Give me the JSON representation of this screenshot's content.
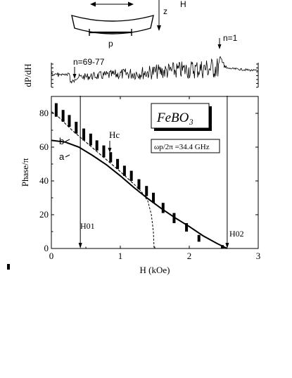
{
  "colors": {
    "ink": "#000000",
    "background": "#ffffff",
    "ticks": "#000000"
  },
  "schematic": {
    "field_label": "H",
    "axis_label": "z",
    "pump_label": "p"
  },
  "top_trace": {
    "ylabel": "dP/dH",
    "annotations": {
      "left": "n=69-77",
      "right": "n=1"
    }
  },
  "chart_data": {
    "type": "line",
    "xlabel": "H (kOe)",
    "ylabel": "Phase/π",
    "xlim": [
      0,
      3
    ],
    "ylim": [
      0,
      90
    ],
    "xticks": [
      "0",
      "1",
      "2",
      "3"
    ],
    "yticks": [
      "0",
      "20",
      "40",
      "60",
      "80"
    ],
    "material_label": "FeBO₃",
    "frequency_label": "ωp/2π =34.4 GHz",
    "annotations": {
      "curve_a": "a",
      "curve_b": "b",
      "critical_field": "Hc",
      "h01": "H01",
      "h02": "H02"
    },
    "h01_x": 0.42,
    "h02_x": 2.55,
    "hc_x": 0.84,
    "series": [
      {
        "values": [
          [
            0.0,
            64.0
          ],
          [
            0.2,
            63.0
          ],
          [
            0.4,
            60.0
          ],
          [
            0.6,
            55.0
          ],
          [
            0.8,
            49.5
          ],
          [
            1.0,
            43.0
          ],
          [
            1.2,
            36.0
          ],
          [
            1.4,
            29.5
          ],
          [
            1.6,
            23.5
          ],
          [
            1.8,
            18.0
          ],
          [
            2.0,
            13.0
          ],
          [
            2.2,
            7.5
          ],
          [
            2.4,
            3.0
          ],
          [
            2.55,
            0.0
          ]
        ]
      },
      {
        "values": [
          [
            0.0,
            81.0
          ],
          [
            0.1,
            78.0
          ],
          [
            0.2,
            74.0
          ],
          [
            0.3,
            70.0
          ],
          [
            0.4,
            66.5
          ],
          [
            0.5,
            63.0
          ],
          [
            0.6,
            59.5
          ],
          [
            0.8,
            52.5
          ],
          [
            1.0,
            45.5
          ],
          [
            1.2,
            38.0
          ],
          [
            1.3,
            34.0
          ],
          [
            1.4,
            28.0
          ],
          [
            1.45,
            20.0
          ],
          [
            1.48,
            10.0
          ],
          [
            1.49,
            0.0
          ]
        ]
      }
    ],
    "measured_bars": [
      {
        "x": 0.07,
        "low": 78,
        "high": 86
      },
      {
        "x": 0.17,
        "low": 75,
        "high": 82
      },
      {
        "x": 0.26,
        "low": 72,
        "high": 79
      },
      {
        "x": 0.36,
        "low": 68,
        "high": 75
      },
      {
        "x": 0.47,
        "low": 64,
        "high": 71
      },
      {
        "x": 0.57,
        "low": 61,
        "high": 68
      },
      {
        "x": 0.66,
        "low": 58,
        "high": 64
      },
      {
        "x": 0.76,
        "low": 54,
        "high": 61
      },
      {
        "x": 0.86,
        "low": 51,
        "high": 57
      },
      {
        "x": 0.96,
        "low": 47,
        "high": 53
      },
      {
        "x": 1.06,
        "low": 43,
        "high": 49
      },
      {
        "x": 1.16,
        "low": 40,
        "high": 46
      },
      {
        "x": 1.27,
        "low": 35,
        "high": 41
      },
      {
        "x": 1.38,
        "low": 31,
        "high": 37
      },
      {
        "x": 1.48,
        "low": 27,
        "high": 33
      },
      {
        "x": 1.62,
        "low": 21,
        "high": 27
      },
      {
        "x": 1.78,
        "low": 15,
        "high": 21
      },
      {
        "x": 1.96,
        "low": 10,
        "high": 15
      },
      {
        "x": 2.14,
        "low": 4,
        "high": 8
      },
      {
        "x": 2.48,
        "low": 0,
        "high": 2
      }
    ]
  }
}
